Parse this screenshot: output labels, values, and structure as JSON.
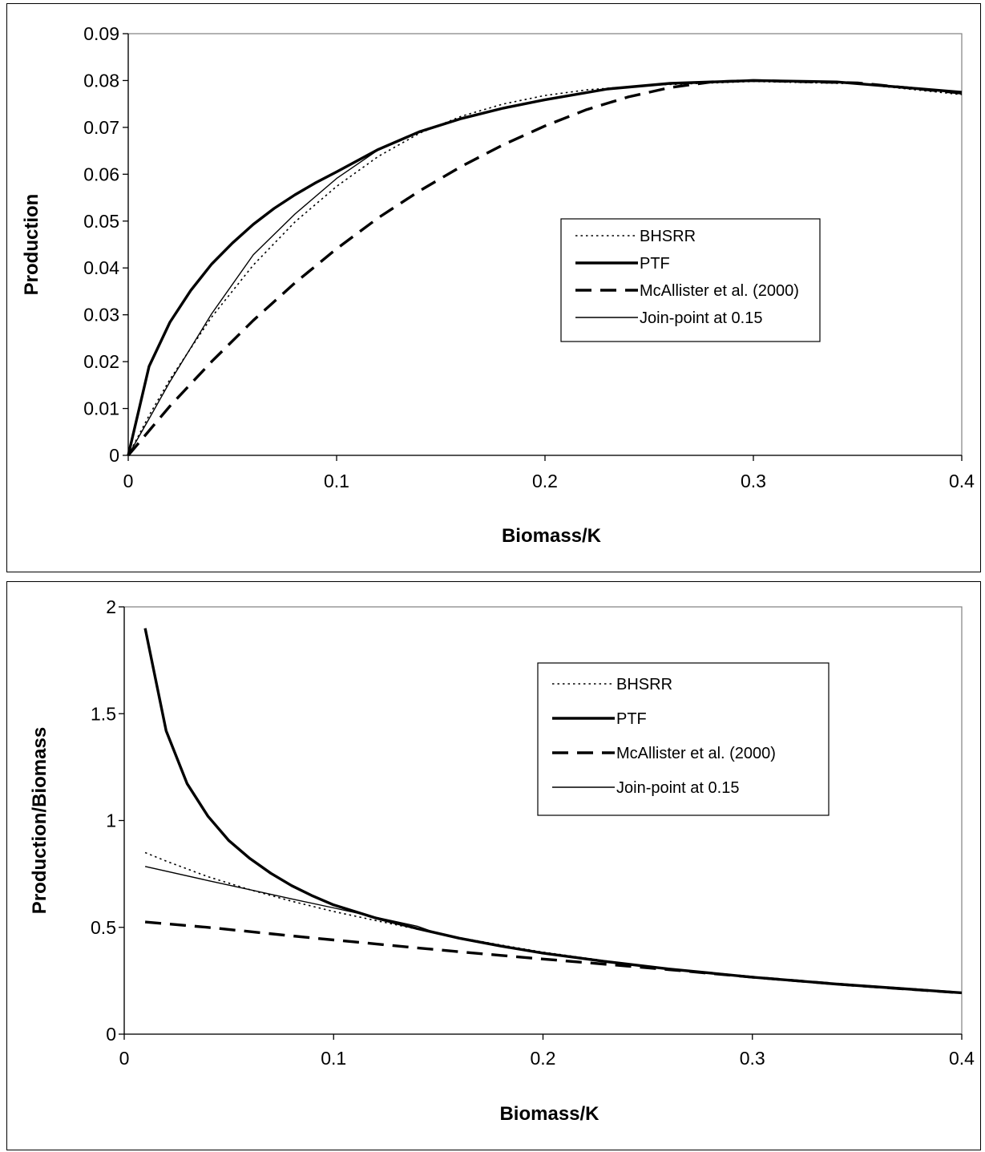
{
  "chart_data": [
    {
      "type": "line",
      "title": "",
      "xlabel": "Biomass/K",
      "ylabel": "Production",
      "xlim": [
        0,
        0.4
      ],
      "ylim": [
        0,
        0.09
      ],
      "xticks": [
        "0",
        "0.1",
        "0.2",
        "0.3",
        "0.4"
      ],
      "yticks": [
        "0",
        "0.01",
        "0.02",
        "0.03",
        "0.04",
        "0.05",
        "0.06",
        "0.07",
        "0.08",
        "0.09"
      ],
      "grid": false,
      "legend_position": "center-right",
      "series": [
        {
          "name": "BHSRR",
          "style": "dotted",
          "x": [
            0,
            0.01,
            0.02,
            0.04,
            0.06,
            0.08,
            0.1,
            0.12,
            0.14,
            0.16,
            0.18,
            0.2,
            0.22,
            0.25,
            0.3,
            0.35,
            0.4
          ],
          "y": [
            0,
            0.0085,
            0.0162,
            0.0295,
            0.0406,
            0.0498,
            0.0574,
            0.0638,
            0.0688,
            0.0724,
            0.075,
            0.0768,
            0.078,
            0.079,
            0.0798,
            0.0793,
            0.077
          ]
        },
        {
          "name": "PTF",
          "style": "thick-solid",
          "x": [
            0,
            0.01,
            0.02,
            0.03,
            0.04,
            0.05,
            0.06,
            0.07,
            0.08,
            0.09,
            0.1,
            0.12,
            0.14,
            0.16,
            0.18,
            0.2,
            0.23,
            0.26,
            0.3,
            0.34,
            0.4
          ],
          "y": [
            0,
            0.019,
            0.0284,
            0.0352,
            0.0408,
            0.0453,
            0.0493,
            0.0527,
            0.0556,
            0.0582,
            0.0605,
            0.0653,
            0.0691,
            0.0719,
            0.0741,
            0.0759,
            0.0782,
            0.0794,
            0.08,
            0.0797,
            0.0775
          ]
        },
        {
          "name": "McAllister et al. (2000)",
          "style": "dashed",
          "x": [
            0,
            0.02,
            0.04,
            0.06,
            0.08,
            0.1,
            0.12,
            0.14,
            0.16,
            0.18,
            0.2,
            0.22,
            0.24,
            0.26,
            0.28,
            0.3,
            0.35,
            0.4
          ],
          "y": [
            0,
            0.0105,
            0.02,
            0.0288,
            0.0368,
            0.0441,
            0.0507,
            0.0565,
            0.0617,
            0.0663,
            0.0703,
            0.0738,
            0.0765,
            0.0785,
            0.0797,
            0.08,
            0.0795,
            0.0773
          ]
        },
        {
          "name": "Join-point at 0.15",
          "style": "thin-solid",
          "x": [
            0,
            0.01,
            0.02,
            0.04,
            0.06,
            0.08,
            0.1,
            0.12,
            0.14,
            0.15,
            0.16,
            0.18,
            0.2,
            0.23,
            0.26,
            0.3,
            0.34,
            0.4
          ],
          "y": [
            0,
            0.0078,
            0.0157,
            0.0302,
            0.0428,
            0.0515,
            0.0591,
            0.0652,
            0.0692,
            0.0705,
            0.0719,
            0.0741,
            0.0759,
            0.0782,
            0.0794,
            0.08,
            0.0797,
            0.0775
          ]
        }
      ]
    },
    {
      "type": "line",
      "title": "",
      "xlabel": "Biomass/K",
      "ylabel": "Production/Biomass",
      "xlim": [
        0,
        0.4
      ],
      "ylim": [
        0,
        2
      ],
      "xticks": [
        "0",
        "0.1",
        "0.2",
        "0.3",
        "0.4"
      ],
      "yticks": [
        "0",
        "0.5",
        "1",
        "1.5",
        "2"
      ],
      "grid": false,
      "legend_position": "top-right",
      "series": [
        {
          "name": "BHSRR",
          "style": "dotted",
          "x": [
            0.01,
            0.02,
            0.04,
            0.06,
            0.08,
            0.1,
            0.12,
            0.14,
            0.16,
            0.18,
            0.2,
            0.25,
            0.3,
            0.35,
            0.4
          ],
          "y": [
            0.85,
            0.81,
            0.737,
            0.676,
            0.622,
            0.574,
            0.532,
            0.491,
            0.452,
            0.417,
            0.384,
            0.316,
            0.266,
            0.227,
            0.1925
          ]
        },
        {
          "name": "PTF",
          "style": "thick-solid",
          "x": [
            0.01,
            0.02,
            0.03,
            0.04,
            0.05,
            0.06,
            0.07,
            0.08,
            0.09,
            0.1,
            0.12,
            0.14,
            0.16,
            0.18,
            0.2,
            0.23,
            0.26,
            0.3,
            0.34,
            0.4
          ],
          "y": [
            1.9,
            1.42,
            1.173,
            1.02,
            0.906,
            0.822,
            0.753,
            0.695,
            0.647,
            0.605,
            0.544,
            0.494,
            0.449,
            0.412,
            0.3795,
            0.34,
            0.305,
            0.2667,
            0.2344,
            0.1938
          ]
        },
        {
          "name": "McAllister et al. (2000)",
          "style": "dashed",
          "x": [
            0.01,
            0.04,
            0.06,
            0.08,
            0.1,
            0.12,
            0.14,
            0.16,
            0.18,
            0.2,
            0.22,
            0.24,
            0.26,
            0.28,
            0.3,
            0.35,
            0.4
          ],
          "y": [
            0.525,
            0.5,
            0.48,
            0.46,
            0.441,
            0.4225,
            0.4036,
            0.3856,
            0.3683,
            0.3515,
            0.3355,
            0.3188,
            0.3019,
            0.2846,
            0.2667,
            0.2271,
            0.1933
          ]
        },
        {
          "name": "Join-point at 0.15",
          "style": "thin-solid",
          "x": [
            0.01,
            0.04,
            0.06,
            0.08,
            0.1,
            0.12,
            0.14,
            0.15,
            0.16,
            0.18,
            0.2,
            0.23,
            0.26,
            0.3,
            0.34,
            0.4
          ],
          "y": [
            0.785,
            0.719,
            0.676,
            0.633,
            0.591,
            0.548,
            0.505,
            0.47,
            0.449,
            0.412,
            0.3795,
            0.34,
            0.305,
            0.2667,
            0.2344,
            0.1938
          ]
        }
      ]
    }
  ]
}
